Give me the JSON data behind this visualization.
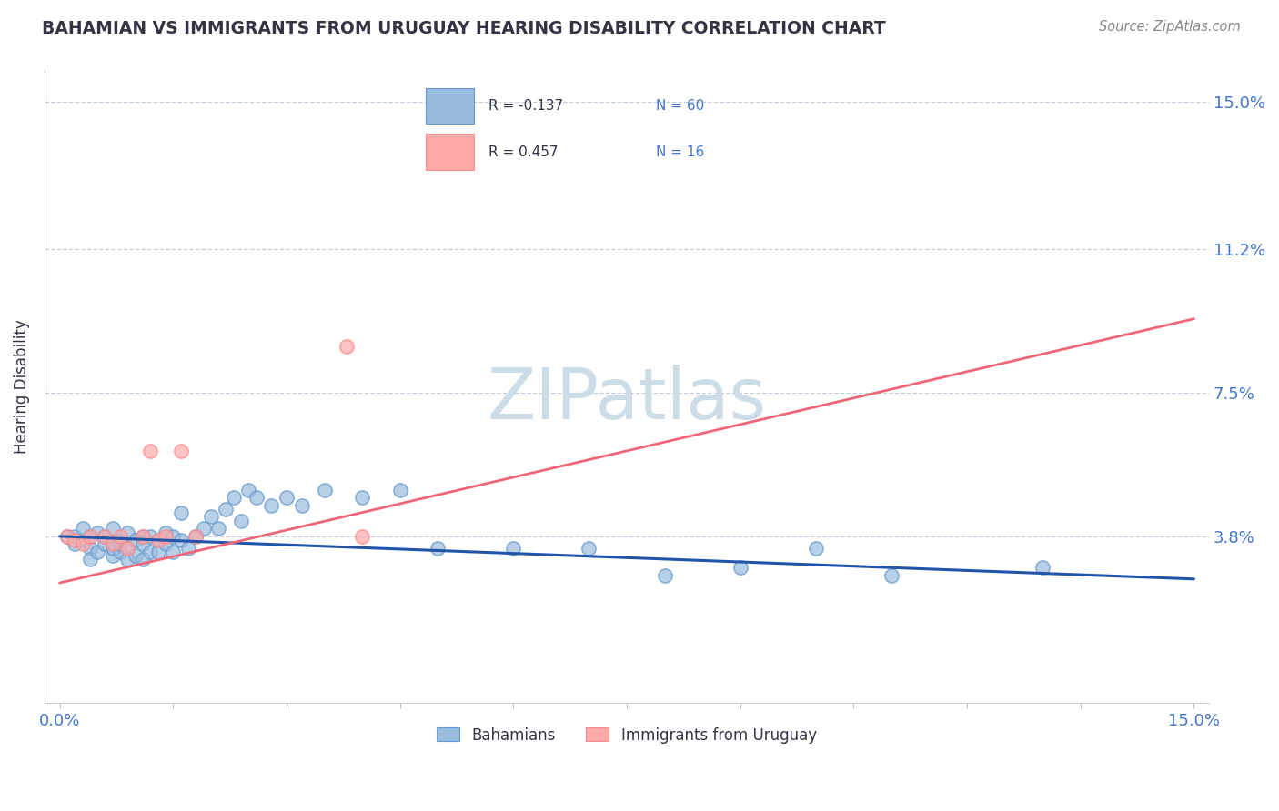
{
  "title": "BAHAMIAN VS IMMIGRANTS FROM URUGUAY HEARING DISABILITY CORRELATION CHART",
  "source": "Source: ZipAtlas.com",
  "ylabel": "Hearing Disability",
  "watermark": "ZIPatlas",
  "legend_blue_r": "R = -0.137",
  "legend_blue_n": "N = 60",
  "legend_pink_r": "R = 0.457",
  "legend_pink_n": "N = 16",
  "legend_label_blue": "Bahamians",
  "legend_label_pink": "Immigrants from Uruguay",
  "xlim": [
    -0.002,
    0.152
  ],
  "ylim": [
    -0.005,
    0.158
  ],
  "yticks": [
    0.038,
    0.075,
    0.112,
    0.15
  ],
  "ytick_labels": [
    "3.8%",
    "7.5%",
    "11.2%",
    "15.0%"
  ],
  "blue_color": "#99BBDD",
  "pink_color": "#FFAAAA",
  "blue_edge_color": "#6699CC",
  "pink_edge_color": "#FF8888",
  "blue_line_color": "#2255AA",
  "pink_line_color": "#EE6677",
  "axis_label_color": "#4477CC",
  "title_color": "#333344",
  "source_color": "#888888",
  "watermark_color": "#CCDDE8",
  "blue_scatter_x": [
    0.001,
    0.002,
    0.002,
    0.003,
    0.003,
    0.004,
    0.004,
    0.004,
    0.005,
    0.005,
    0.006,
    0.006,
    0.007,
    0.007,
    0.007,
    0.008,
    0.008,
    0.008,
    0.009,
    0.009,
    0.009,
    0.01,
    0.01,
    0.011,
    0.011,
    0.011,
    0.012,
    0.012,
    0.013,
    0.013,
    0.014,
    0.014,
    0.015,
    0.015,
    0.016,
    0.016,
    0.017,
    0.018,
    0.019,
    0.02,
    0.021,
    0.022,
    0.023,
    0.024,
    0.025,
    0.026,
    0.028,
    0.03,
    0.032,
    0.035,
    0.04,
    0.045,
    0.05,
    0.06,
    0.07,
    0.08,
    0.09,
    0.1,
    0.11,
    0.13
  ],
  "blue_scatter_y": [
    0.038,
    0.038,
    0.036,
    0.037,
    0.04,
    0.035,
    0.038,
    0.032,
    0.034,
    0.039,
    0.036,
    0.038,
    0.033,
    0.04,
    0.035,
    0.034,
    0.037,
    0.036,
    0.039,
    0.035,
    0.032,
    0.037,
    0.033,
    0.038,
    0.036,
    0.032,
    0.034,
    0.038,
    0.037,
    0.034,
    0.036,
    0.039,
    0.034,
    0.038,
    0.037,
    0.044,
    0.035,
    0.038,
    0.04,
    0.043,
    0.04,
    0.045,
    0.048,
    0.042,
    0.05,
    0.048,
    0.046,
    0.048,
    0.046,
    0.05,
    0.048,
    0.05,
    0.035,
    0.035,
    0.035,
    0.028,
    0.03,
    0.035,
    0.028,
    0.03
  ],
  "pink_scatter_x": [
    0.001,
    0.002,
    0.003,
    0.004,
    0.006,
    0.007,
    0.008,
    0.009,
    0.011,
    0.012,
    0.013,
    0.014,
    0.016,
    0.018,
    0.038,
    0.04
  ],
  "pink_scatter_y": [
    0.038,
    0.037,
    0.036,
    0.038,
    0.038,
    0.036,
    0.038,
    0.035,
    0.038,
    0.06,
    0.037,
    0.038,
    0.06,
    0.038,
    0.087,
    0.038
  ],
  "blue_trend_x": [
    0.0,
    0.15
  ],
  "blue_trend_y": [
    0.038,
    0.027
  ],
  "pink_trend_x": [
    0.0,
    0.15
  ],
  "pink_trend_y": [
    0.026,
    0.094
  ],
  "background_color": "#FFFFFF",
  "grid_color": "#BBCCDD",
  "figsize": [
    14.06,
    8.92
  ],
  "dpi": 100
}
